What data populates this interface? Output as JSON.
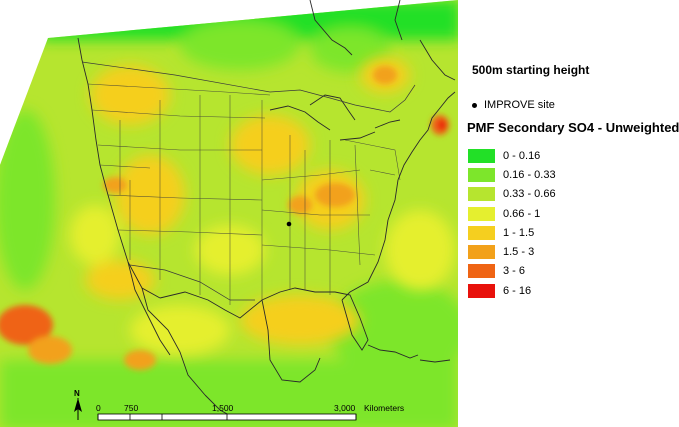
{
  "map": {
    "north_arrow_label": "N",
    "scale_bar": {
      "ticks": [
        "0",
        "750",
        "1,500",
        "3,000"
      ],
      "unit": "Kilometers"
    },
    "site_marker": "IMPROVE site"
  },
  "legend": {
    "height_note": "500m starting height",
    "site_label": "IMPROVE site",
    "title": "PMF Secondary SO4 - Unweighted",
    "classes": [
      {
        "label": "0 - 0.16",
        "color": "#22e027"
      },
      {
        "label": "0.16 - 0.33",
        "color": "#7de62b"
      },
      {
        "label": "0.33 - 0.66",
        "color": "#b6e52f"
      },
      {
        "label": "0.66 - 1",
        "color": "#e5ef2f"
      },
      {
        "label": "1 - 1.5",
        "color": "#f5cf1f"
      },
      {
        "label": "1.5 - 3",
        "color": "#f2a11a"
      },
      {
        "label": "3 - 6",
        "color": "#ef6414"
      },
      {
        "label": "6 - 16",
        "color": "#e8110b"
      }
    ]
  }
}
